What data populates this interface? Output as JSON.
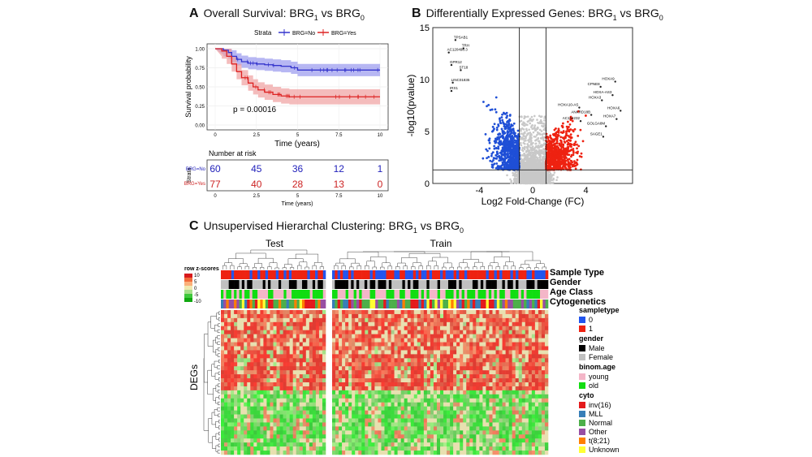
{
  "panels": {
    "A": {
      "letter": "A",
      "title": "Overall Survival: BRG",
      "sub1": "1",
      "vs": " vs BRG",
      "sub0": "0"
    },
    "B": {
      "letter": "B",
      "title": "Differentially Expressed Genes: BRG",
      "sub1": "1",
      "vs": " vs BRG",
      "sub0": "0"
    },
    "C": {
      "letter": "C",
      "title": "Unsupervised Hierarchal Clustering: BRG",
      "sub1": "1",
      "vs": " vs BRG",
      "sub0": "0"
    }
  },
  "chart_data": [
    {
      "type": "line",
      "panel": "A",
      "xlabel": "Time (years)",
      "ylabel": "Survival probability",
      "xticks": [
        0,
        2.5,
        5,
        7.5,
        10
      ],
      "xtick_labels": [
        "0",
        "2.5",
        "5",
        "7.5",
        "10"
      ],
      "yticks": [
        0,
        0.25,
        0.5,
        0.75,
        1.0
      ],
      "ytick_labels": [
        "0.00",
        "0.25",
        "0.50",
        "0.75",
        "1.00"
      ],
      "xlim": [
        0,
        10
      ],
      "ylim": [
        0,
        1
      ],
      "legend_title": "Strata",
      "pvalue_text": "p = 0.00016",
      "series": [
        {
          "name": "BRG=No",
          "color": "#3333cc",
          "band": "#9999ee",
          "x": [
            0,
            0.5,
            0.8,
            1.0,
            1.3,
            1.6,
            2.0,
            2.5,
            3.0,
            3.5,
            4.0,
            4.6,
            5.0,
            10.0
          ],
          "y": [
            1.0,
            0.98,
            0.95,
            0.9,
            0.86,
            0.83,
            0.81,
            0.8,
            0.79,
            0.78,
            0.77,
            0.75,
            0.72,
            0.72
          ]
        },
        {
          "name": "BRG=Yes",
          "color": "#dd2222",
          "band": "#f0a0a0",
          "x": [
            0,
            0.4,
            0.7,
            1.0,
            1.3,
            1.6,
            2.0,
            2.3,
            2.6,
            3.0,
            3.5,
            4.0,
            4.5,
            5.0,
            10.0
          ],
          "y": [
            1.0,
            0.97,
            0.9,
            0.8,
            0.7,
            0.62,
            0.55,
            0.5,
            0.46,
            0.43,
            0.4,
            0.38,
            0.37,
            0.37,
            0.37
          ]
        }
      ]
    },
    {
      "type": "table",
      "panel": "A-risk",
      "title": "Number at risk",
      "ylabel": "Strata",
      "xlabel": "Time (years)",
      "times": [
        "0",
        "2.5",
        "5",
        "7.5",
        "10"
      ],
      "rows": [
        {
          "name": "BRG=No",
          "color": "#2222bb",
          "values": [
            60,
            45,
            36,
            12,
            1
          ]
        },
        {
          "name": "BRG=Yes",
          "color": "#cc2222",
          "values": [
            77,
            40,
            28,
            13,
            0
          ]
        }
      ]
    },
    {
      "type": "scatter",
      "panel": "B",
      "xlabel": "Log2 Fold-Change (FC)",
      "ylabel": "-log10(pvalue)",
      "xticks": [
        -4,
        0,
        4
      ],
      "xtick_labels": [
        "-4",
        "0",
        "4"
      ],
      "yticks": [
        0,
        5,
        10,
        15
      ],
      "ytick_labels": [
        "0",
        "5",
        "10",
        "15"
      ],
      "xlim": [
        -7.5,
        7.5
      ],
      "ylim": [
        0,
        15
      ],
      "thresholds": {
        "fc": 1,
        "p": 1.3
      },
      "colors": {
        "down": "#1f4fd6",
        "up": "#ee2211",
        "ns": "#c8c8c8"
      },
      "annotations": [
        {
          "label": "TPSAB1",
          "x": -5.8,
          "y": 13.8
        },
        {
          "label": "TRH",
          "x": -5.2,
          "y": 13.0
        },
        {
          "label": "AC120498.3",
          "x": -6.3,
          "y": 12.6
        },
        {
          "label": "GPR12",
          "x": -6.1,
          "y": 11.4
        },
        {
          "label": "ST18",
          "x": -5.4,
          "y": 10.9
        },
        {
          "label": "LINC01835",
          "x": -6.0,
          "y": 9.7
        },
        {
          "label": "IRX1",
          "x": -6.1,
          "y": 8.9
        },
        {
          "label": "HOXA9",
          "x": 6.2,
          "y": 9.8
        },
        {
          "label": "CPNE8",
          "x": 5.1,
          "y": 9.3
        },
        {
          "label": "HOXA-AS3",
          "x": 6.0,
          "y": 8.5
        },
        {
          "label": "HOXA3",
          "x": 5.2,
          "y": 8.0
        },
        {
          "label": "HOXA10-AS",
          "x": 3.5,
          "y": 7.3
        },
        {
          "label": "HOXA6",
          "x": 6.6,
          "y": 7.0
        },
        {
          "label": "ANKRD18B",
          "x": 4.4,
          "y": 6.6
        },
        {
          "label": "HOXA7",
          "x": 6.3,
          "y": 6.2
        },
        {
          "label": "AC104232",
          "x": 3.6,
          "y": 6.0
        },
        {
          "label": "GOLGA8M",
          "x": 5.5,
          "y": 5.5
        },
        {
          "label": "SAGE1",
          "x": 5.3,
          "y": 4.5
        }
      ]
    },
    {
      "type": "heatmap",
      "panel": "C",
      "groups": [
        "Test",
        "Train"
      ],
      "row_labels": [
        "Sample Type",
        "Gender",
        "Age Class",
        "Cytogenetics"
      ],
      "ylabel": "DEGs",
      "colorbar_title": "row z-scores",
      "colorbar_ticks": [
        "10",
        "5",
        "0",
        "-5",
        "-10"
      ],
      "legends": [
        {
          "title": "sampletype",
          "items": [
            {
              "label": "0",
              "color": "#2255ee"
            },
            {
              "label": "1",
              "color": "#ee2211"
            }
          ]
        },
        {
          "title": "gender",
          "items": [
            {
              "label": "Male",
              "color": "#000000"
            },
            {
              "label": "Female",
              "color": "#c0c0c0"
            }
          ]
        },
        {
          "title": "binom.age",
          "items": [
            {
              "label": "young",
              "color": "#f4b6c8"
            },
            {
              "label": "old",
              "color": "#11dd11"
            }
          ]
        },
        {
          "title": "cyto",
          "items": [
            {
              "label": "inv(16)",
              "color": "#e41a1c"
            },
            {
              "label": "MLL",
              "color": "#377eb8"
            },
            {
              "label": "Normal",
              "color": "#4daf4a"
            },
            {
              "label": "Other",
              "color": "#984ea3"
            },
            {
              "label": "t(8;21)",
              "color": "#ff7f00"
            },
            {
              "label": "Unknown",
              "color": "#ffff33"
            }
          ]
        }
      ]
    }
  ]
}
